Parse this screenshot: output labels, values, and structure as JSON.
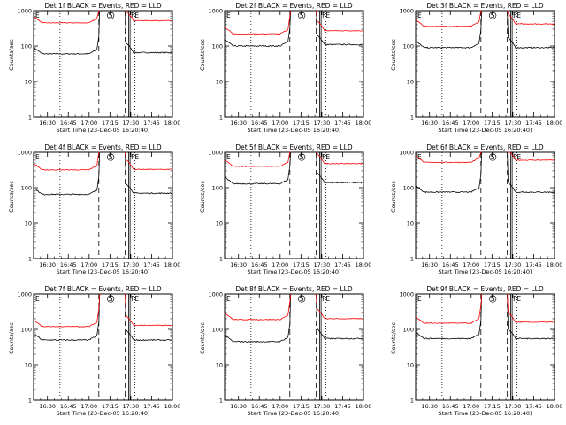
{
  "figure": {
    "y_axis_label": "Counts/sec",
    "x_axis_label": "Start Time (23-Dec-05 16:20:40)",
    "x_tick_labels": [
      "16:30",
      "16:45",
      "17:00",
      "17:15",
      "17:30",
      "17:45",
      "18:00"
    ],
    "y_tick_labels": [
      "1",
      "10",
      "100",
      "1000"
    ],
    "colors": {
      "events": "#000000",
      "lld": "#ff0000",
      "background": "#ffffff"
    }
  },
  "chart_data": [
    {
      "type": "line",
      "title": "Det 1f BLACK = Events, RED = LLD",
      "ylabel": "Counts/sec",
      "xlabel": "Start Time (23-Dec-05 16:20:40)",
      "ylim": [
        1,
        1000
      ],
      "yscale": "log",
      "xlim_minutes_after_1620": [
        0,
        100
      ],
      "markers": [
        "E",
        "S",
        "FE"
      ],
      "series": [
        {
          "name": "Events",
          "color": "#000000",
          "level_before": 60,
          "level_after": 65
        },
        {
          "name": "LLD",
          "color": "#ff0000",
          "level_before": 450,
          "level_after": 520
        }
      ]
    },
    {
      "type": "line",
      "title": "Det 2f BLACK = Events, RED = LLD",
      "ylabel": "Counts/sec",
      "xlabel": "Start Time (23-Dec-05 16:20:40)",
      "ylim": [
        1,
        1000
      ],
      "yscale": "log",
      "xlim_minutes_after_1620": [
        0,
        100
      ],
      "markers": [
        "E",
        "S",
        "FE"
      ],
      "series": [
        {
          "name": "Events",
          "color": "#000000",
          "level_before": 100,
          "level_after": 110
        },
        {
          "name": "LLD",
          "color": "#ff0000",
          "level_before": 220,
          "level_after": 270
        }
      ]
    },
    {
      "type": "line",
      "title": "Det 3f BLACK = Events, RED = LLD",
      "ylabel": "Counts/sec",
      "xlabel": "Start Time (23-Dec-05 16:20:40)",
      "ylim": [
        1,
        1000
      ],
      "yscale": "log",
      "xlim_minutes_after_1620": [
        0,
        100
      ],
      "markers": [
        "E",
        "S",
        "FE"
      ],
      "series": [
        {
          "name": "Events",
          "color": "#000000",
          "level_before": 90,
          "level_after": 90
        },
        {
          "name": "LLD",
          "color": "#ff0000",
          "level_before": 360,
          "level_after": 420
        }
      ]
    },
    {
      "type": "line",
      "title": "Det 4f BLACK = Events, RED = LLD",
      "ylabel": "Counts/sec",
      "xlabel": "Start Time (23-Dec-05 16:20:40)",
      "ylim": [
        1,
        1000
      ],
      "yscale": "log",
      "xlim_minutes_after_1620": [
        0,
        100
      ],
      "markers": [
        "E",
        "S",
        "FE"
      ],
      "series": [
        {
          "name": "Events",
          "color": "#000000",
          "level_before": 65,
          "level_after": 70
        },
        {
          "name": "LLD",
          "color": "#ff0000",
          "level_before": 320,
          "level_after": 330
        }
      ]
    },
    {
      "type": "line",
      "title": "Det 5f BLACK = Events, RED = LLD",
      "ylabel": "Counts/sec",
      "xlabel": "Start Time (23-Dec-05 16:20:40)",
      "ylim": [
        1,
        1000
      ],
      "yscale": "log",
      "xlim_minutes_after_1620": [
        0,
        100
      ],
      "markers": [
        "E",
        "S",
        "FE"
      ],
      "series": [
        {
          "name": "Events",
          "color": "#000000",
          "level_before": 130,
          "level_after": 140
        },
        {
          "name": "LLD",
          "color": "#ff0000",
          "level_before": 400,
          "level_after": 480
        }
      ]
    },
    {
      "type": "line",
      "title": "Det 6f BLACK = Events, RED = LLD",
      "ylabel": "Counts/sec",
      "xlabel": "Start Time (23-Dec-05 16:20:40)",
      "ylim": [
        1,
        1000
      ],
      "yscale": "log",
      "xlim_minutes_after_1620": [
        0,
        100
      ],
      "markers": [
        "E",
        "S",
        "FE"
      ],
      "series": [
        {
          "name": "Events",
          "color": "#000000",
          "level_before": 75,
          "level_after": 75
        },
        {
          "name": "LLD",
          "color": "#ff0000",
          "level_before": 520,
          "level_after": 600
        }
      ]
    },
    {
      "type": "line",
      "title": "Det 7f BLACK = Events, RED = LLD",
      "ylabel": "Counts/sec",
      "xlabel": "Start Time (23-Dec-05 16:20:40)",
      "ylim": [
        1,
        1000
      ],
      "yscale": "log",
      "xlim_minutes_after_1620": [
        0,
        100
      ],
      "markers": [
        "E",
        "S",
        "FE"
      ],
      "series": [
        {
          "name": "Events",
          "color": "#000000",
          "level_before": 50,
          "level_after": 50
        },
        {
          "name": "LLD",
          "color": "#ff0000",
          "level_before": 120,
          "level_after": 130
        }
      ]
    },
    {
      "type": "line",
      "title": "Det 8f BLACK = Events, RED = LLD",
      "ylabel": "Counts/sec",
      "xlabel": "Start Time (23-Dec-05 16:20:40)",
      "ylim": [
        1,
        1000
      ],
      "yscale": "log",
      "xlim_minutes_after_1620": [
        0,
        100
      ],
      "markers": [
        "E",
        "S",
        "FE"
      ],
      "series": [
        {
          "name": "Events",
          "color": "#000000",
          "level_before": 45,
          "level_after": 55
        },
        {
          "name": "LLD",
          "color": "#ff0000",
          "level_before": 190,
          "level_after": 200
        }
      ]
    },
    {
      "type": "line",
      "title": "Det 9f BLACK = Events, RED = LLD",
      "ylabel": "Counts/sec",
      "xlabel": "Start Time (23-Dec-05 16:20:40)",
      "ylim": [
        1,
        1000
      ],
      "yscale": "log",
      "xlim_minutes_after_1620": [
        0,
        100
      ],
      "markers": [
        "E",
        "S",
        "FE"
      ],
      "series": [
        {
          "name": "Events",
          "color": "#000000",
          "level_before": 55,
          "level_after": 55
        },
        {
          "name": "LLD",
          "color": "#ff0000",
          "level_before": 150,
          "level_after": 160
        }
      ]
    }
  ]
}
